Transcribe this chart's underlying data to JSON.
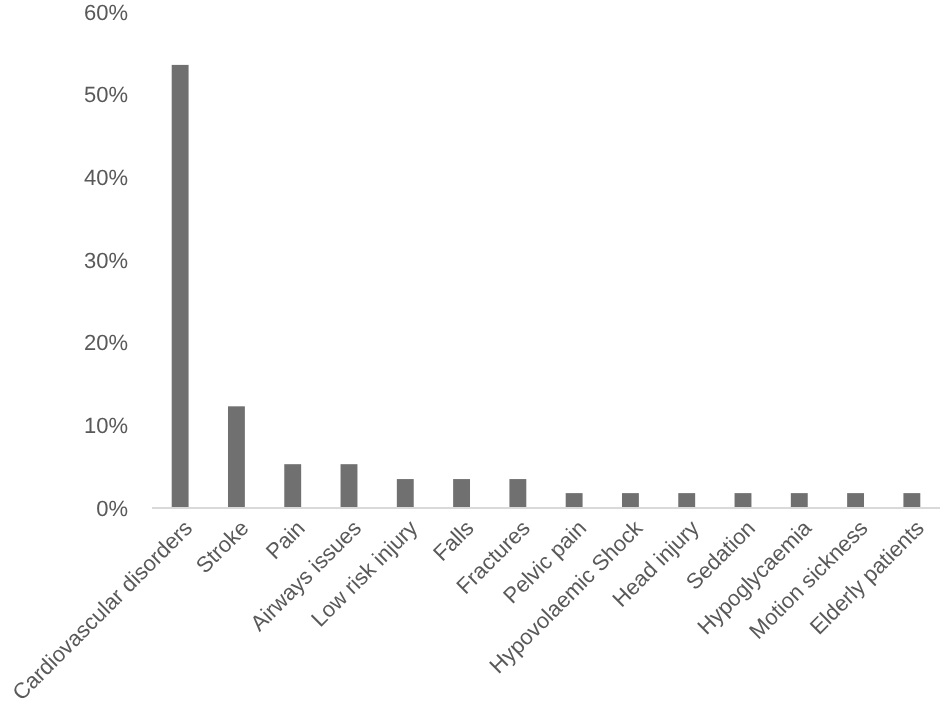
{
  "chart_data": {
    "type": "bar",
    "categories": [
      "Cardiovascular disorders",
      "Stroke",
      "Pain",
      "Airways issues",
      "Low risk injury",
      "Falls",
      "Fractures",
      "Pelvic pain",
      "Hypovolaemic Shock",
      "Head injury",
      "Sedation",
      "Hypoglycaemia",
      "Motion sickness",
      "Elderly patients"
    ],
    "values": [
      53.6,
      12.3,
      5.3,
      5.3,
      3.5,
      3.5,
      3.5,
      1.8,
      1.8,
      1.8,
      1.8,
      1.8,
      1.8,
      1.8
    ],
    "color": "#707070",
    "ylim": [
      0,
      60
    ],
    "yticks": [
      {
        "value": 0,
        "label": "0%"
      },
      {
        "value": 10,
        "label": "10%"
      },
      {
        "value": 20,
        "label": "20%"
      },
      {
        "value": 30,
        "label": "30%"
      },
      {
        "value": 40,
        "label": "40%"
      },
      {
        "value": 50,
        "label": "50%"
      },
      {
        "value": 60,
        "label": "60%"
      }
    ],
    "grid": false
  }
}
